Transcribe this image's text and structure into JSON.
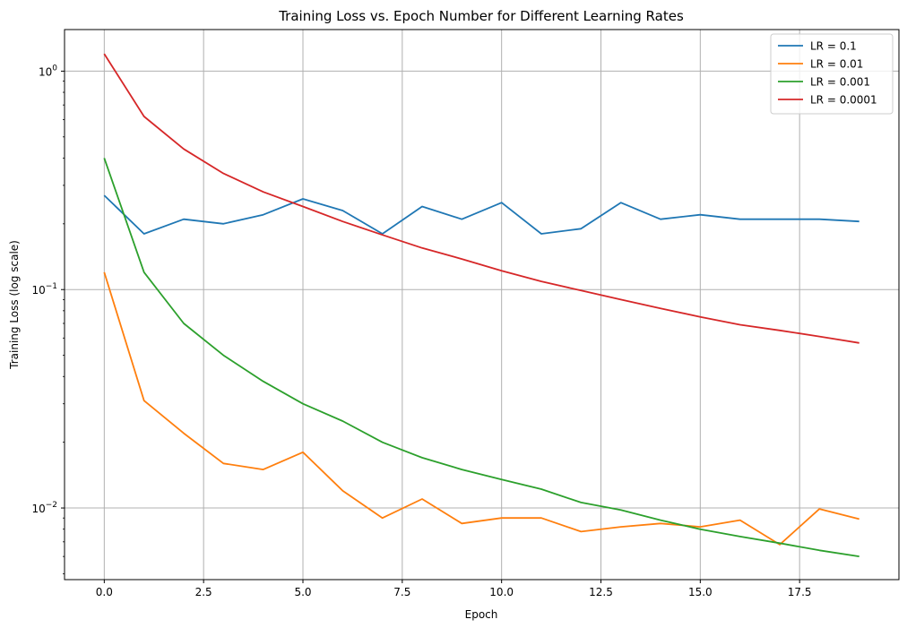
{
  "chart_data": {
    "type": "line",
    "title": "Training Loss vs. Epoch Number for Different Learning Rates",
    "xlabel": "Epoch",
    "ylabel": "Training Loss (log scale)",
    "yscale": "log",
    "xlim": [
      -1,
      20
    ],
    "ylim": [
      0.0047,
      1.55
    ],
    "grid": true,
    "legend_position": "top-right",
    "x_ticks": [
      0.0,
      2.5,
      5.0,
      7.5,
      10.0,
      12.5,
      15.0,
      17.5
    ],
    "x_tick_labels": [
      "0.0",
      "2.5",
      "5.0",
      "7.5",
      "10.0",
      "12.5",
      "15.0",
      "17.5"
    ],
    "y_ticks": [
      1,
      0.1,
      0.01
    ],
    "y_tick_labels": [
      {
        "base": "10",
        "exp": "0"
      },
      {
        "base": "10",
        "exp": "−1"
      },
      {
        "base": "10",
        "exp": "−2"
      }
    ],
    "x": [
      0,
      1,
      2,
      3,
      4,
      5,
      6,
      7,
      8,
      9,
      10,
      11,
      12,
      13,
      14,
      15,
      16,
      17,
      18,
      19
    ],
    "series": [
      {
        "name": "LR = 0.1",
        "color": "#1f77b4",
        "values": [
          0.27,
          0.18,
          0.21,
          0.2,
          0.22,
          0.26,
          0.23,
          0.18,
          0.24,
          0.21,
          0.25,
          0.18,
          0.19,
          0.25,
          0.21,
          0.22,
          0.21,
          0.21,
          0.21,
          0.205
        ]
      },
      {
        "name": "LR = 0.01",
        "color": "#ff7f0e",
        "values": [
          0.12,
          0.031,
          0.022,
          0.016,
          0.015,
          0.018,
          0.012,
          0.009,
          0.011,
          0.0085,
          0.009,
          0.009,
          0.0078,
          0.0082,
          0.0085,
          0.0082,
          0.0088,
          0.0068,
          0.0099,
          0.0089
        ]
      },
      {
        "name": "LR = 0.001",
        "color": "#2ca02c",
        "values": [
          0.4,
          0.12,
          0.07,
          0.05,
          0.038,
          0.03,
          0.025,
          0.02,
          0.017,
          0.015,
          0.0135,
          0.0122,
          0.0106,
          0.0098,
          0.0088,
          0.008,
          0.0074,
          0.0069,
          0.0064,
          0.006
        ]
      },
      {
        "name": "LR = 0.0001",
        "color": "#d62728",
        "values": [
          1.2,
          0.62,
          0.44,
          0.34,
          0.28,
          0.24,
          0.205,
          0.178,
          0.155,
          0.138,
          0.122,
          0.109,
          0.099,
          0.09,
          0.082,
          0.075,
          0.069,
          0.065,
          0.061,
          0.057
        ]
      }
    ]
  }
}
